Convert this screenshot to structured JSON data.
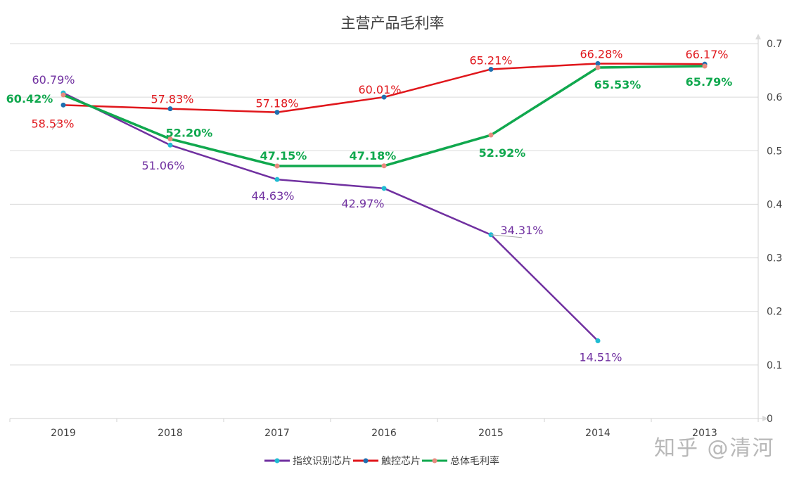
{
  "chart_data": {
    "type": "line",
    "title": "主营产品毛利率",
    "categories": [
      "2019",
      "2018",
      "2017",
      "2016",
      "2015",
      "2014",
      "2013"
    ],
    "yaxis": {
      "position": "right",
      "ticks": [
        "0",
        "0.1",
        "0.2",
        "0.3",
        "0.4",
        "0.5",
        "0.6",
        "0.7"
      ],
      "ylim": [
        0,
        0.7
      ]
    },
    "grid": true,
    "legend": "bottom",
    "series": [
      {
        "name": "指纹识别芯片",
        "color": "#7030a0",
        "marker_color": "#1fbcd2",
        "values": [
          0.6079,
          0.5106,
          0.4463,
          0.4297,
          0.3431,
          0.1451,
          null
        ],
        "labels": [
          "60.79%",
          "51.06%",
          "44.63%",
          "42.97%",
          "34.31%",
          "14.51%",
          ""
        ]
      },
      {
        "name": "触控芯片",
        "color": "#e0161b",
        "marker_color": "#1f6fb0",
        "values": [
          0.5853,
          0.5783,
          0.5718,
          0.6001,
          0.6521,
          0.6628,
          0.6617
        ],
        "labels": [
          "58.53%",
          "57.83%",
          "57.18%",
          "60.01%",
          "65.21%",
          "66.28%",
          "66.17%"
        ]
      },
      {
        "name": "总体毛利率",
        "color": "#10a84e",
        "marker_color": "#e88a7f",
        "values": [
          0.6042,
          0.522,
          0.4715,
          0.4718,
          0.5292,
          0.6553,
          0.6579
        ],
        "labels": [
          "60.42%",
          "52.20%",
          "47.15%",
          "47.18%",
          "52.92%",
          "65.53%",
          "65.79%"
        ]
      }
    ]
  },
  "watermark": "知乎 @清河"
}
